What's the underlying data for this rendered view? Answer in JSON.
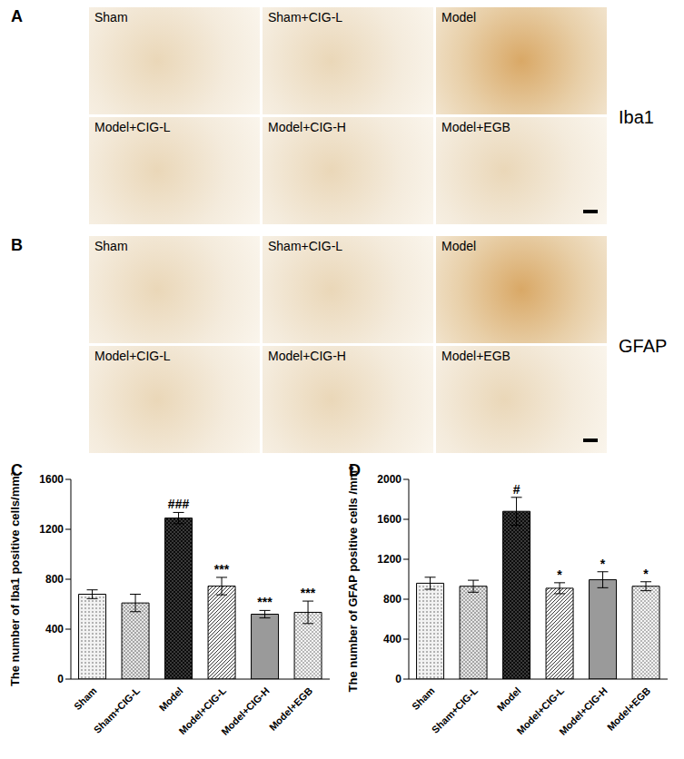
{
  "figure": {
    "panels": [
      {
        "panel": "A",
        "stain": "Iba1",
        "tiles": [
          "Sham",
          "Sham+CIG-L",
          "Model",
          "Model+CIG-L",
          "Model+CIG-H",
          "Model+EGB"
        ]
      },
      {
        "panel": "B",
        "stain": "GFAP",
        "tiles": [
          "Sham",
          "Sham+CIG-L",
          "Model",
          "Model+CIG-L",
          "Model+CIG-H",
          "Model+EGB"
        ]
      }
    ]
  },
  "chart_data": [
    {
      "panel": "C",
      "type": "bar",
      "y_label": "The number of Iba1 positive cells/mm²",
      "categories": [
        "Sham",
        "Sham+CIG-L",
        "Model",
        "Model+CIG-L",
        "Model+CIG-H",
        "Model+EGB"
      ],
      "values": [
        680,
        610,
        1290,
        745,
        520,
        535
      ],
      "errors": [
        35,
        70,
        45,
        70,
        30,
        90
      ],
      "colors": [
        "#f2f2f2",
        "#e6e6e6",
        "#3a3a3a",
        "#ffffff",
        "#9a9a9a",
        "#f5f5f5"
      ],
      "annotations": [
        {
          "category": "Model",
          "text": "###"
        },
        {
          "category": "Model+CIG-L",
          "text": "***"
        },
        {
          "category": "Model+CIG-H",
          "text": "***"
        },
        {
          "category": "Model+EGB",
          "text": "***"
        }
      ],
      "ylim": [
        0,
        1600
      ],
      "yticks": [
        0,
        400,
        800,
        1200,
        1600
      ],
      "grid": false
    },
    {
      "panel": "D",
      "type": "bar",
      "y_label": "The number of GFAP positive cells /mm²",
      "categories": [
        "Sham",
        "Sham+CIG-L",
        "Model",
        "Model+CIG-L",
        "Model+CIG-H",
        "Model+EGB"
      ],
      "values": [
        960,
        930,
        1680,
        910,
        995,
        930
      ],
      "errors": [
        60,
        60,
        140,
        55,
        80,
        45
      ],
      "colors": [
        "#f2f2f2",
        "#e6e6e6",
        "#3a3a3a",
        "#ffffff",
        "#9a9a9a",
        "#f5f5f5"
      ],
      "annotations": [
        {
          "category": "Model",
          "text": "#"
        },
        {
          "category": "Model+CIG-L",
          "text": "*"
        },
        {
          "category": "Model+CIG-H",
          "text": "*"
        },
        {
          "category": "Model+EGB",
          "text": "*"
        }
      ],
      "ylim": [
        0,
        2000
      ],
      "yticks": [
        0,
        400,
        800,
        1200,
        1600,
        2000
      ],
      "grid": false
    }
  ]
}
